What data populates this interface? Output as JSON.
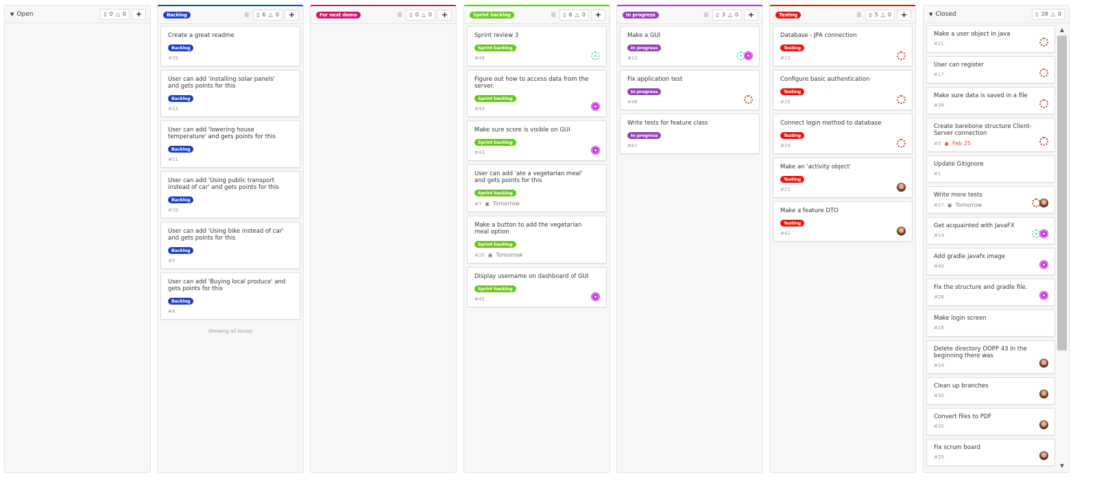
{
  "board": {
    "showing_all": "Showing all issues",
    "columns": [
      {
        "title": "Open",
        "type": "plain",
        "issues": "0",
        "weight": "0",
        "cards": []
      },
      {
        "title": "Backlog",
        "type": "label",
        "color": "#1b3fc9",
        "issues": "6",
        "weight": "0",
        "showing": true,
        "cards": [
          {
            "title": "Create a great readme",
            "label": "Backlog",
            "num": "#39",
            "avatars": []
          },
          {
            "title": "User can add 'installing solar panels' and gets points for this",
            "label": "Backlog",
            "num": "#12",
            "avatars": []
          },
          {
            "title": "User can add 'lowering house temperature' and gets points for this",
            "label": "Backlog",
            "num": "#11",
            "avatars": []
          },
          {
            "title": "User can add 'Using public transport instead of car' and gets points for this",
            "label": "Backlog",
            "num": "#10",
            "avatars": []
          },
          {
            "title": "User can add 'Using bike instead of car' and gets points for this",
            "label": "Backlog",
            "num": "#9",
            "avatars": []
          },
          {
            "title": "User can add 'Buying local produce' and gets points for this",
            "label": "Backlog",
            "num": "#8",
            "avatars": []
          }
        ]
      },
      {
        "title": "For next demo",
        "type": "label",
        "color": "#d3126d",
        "issues": "0",
        "weight": "0",
        "cards": []
      },
      {
        "title": "Sprint backlog",
        "type": "label",
        "color": "#69c51c",
        "issues": "6",
        "weight": "0",
        "cards": [
          {
            "title": "Sprint review 3",
            "label": "Sprint backlog",
            "num": "#48",
            "avatars": [
              "green"
            ]
          },
          {
            "title": "Figure out how to access data from the server.",
            "label": "Sprint backlog",
            "num": "#44",
            "avatars": [
              "purple"
            ]
          },
          {
            "title": "Make sure score is visible on GUI",
            "label": "Sprint backlog",
            "num": "#43",
            "avatars": [
              "purple"
            ]
          },
          {
            "title": "User can add 'ate a vegetarian meal' and gets points for this",
            "label": "Sprint backlog",
            "num": "#7",
            "due": "Tomorrow",
            "avatars": []
          },
          {
            "title": "Make a button to add the vegetarian meal option",
            "label": "Sprint backlog",
            "num": "#20",
            "due": "Tomorrow",
            "avatars": []
          },
          {
            "title": "Display username on dashboard of GUI",
            "label": "Sprint backlog",
            "num": "#45",
            "avatars": [
              "purple"
            ]
          }
        ]
      },
      {
        "title": "In progress",
        "type": "label",
        "color": "#9442b3",
        "issues": "3",
        "weight": "0",
        "cards": [
          {
            "title": "Make a GUI",
            "label": "In progress",
            "num": "#13",
            "avatars": [
              "green",
              "purple"
            ]
          },
          {
            "title": "Fix application test",
            "label": "In progress",
            "num": "#46",
            "avatars": [
              "ring"
            ]
          },
          {
            "title": "Write tests for feature class",
            "label": "In progress",
            "num": "#47",
            "avatars": []
          }
        ]
      },
      {
        "title": "Testing",
        "type": "label",
        "color": "#e8120f",
        "issues": "5",
        "weight": "0",
        "cards": [
          {
            "title": "Database - JPA connection",
            "label": "Testing",
            "num": "#23",
            "avatars": [
              "ring"
            ]
          },
          {
            "title": "Configure basic authentication",
            "label": "Testing",
            "num": "#26",
            "avatars": [
              "ring"
            ]
          },
          {
            "title": "Connect login method to database",
            "label": "Testing",
            "num": "#19",
            "avatars": [
              "ring"
            ]
          },
          {
            "title": "Make an 'activity object'",
            "label": "Testing",
            "num": "#22",
            "avatars": [
              "photo"
            ]
          },
          {
            "title": "Make a feature DTO",
            "label": "Testing",
            "num": "#42",
            "avatars": [
              "photo"
            ]
          }
        ]
      },
      {
        "title": "Closed",
        "type": "plain",
        "issues": "28",
        "weight": "0",
        "closed": true,
        "cards": [
          {
            "title": "Make a user object in java",
            "num": "#21",
            "avatars": [
              "ring"
            ]
          },
          {
            "title": "User can register",
            "num": "#17",
            "avatars": [
              "ring"
            ]
          },
          {
            "title": "Make sure data is saved in a file",
            "num": "#38",
            "avatars": [
              "ring"
            ]
          },
          {
            "title": "Create barebone structure Client-Server connection",
            "num": "#5",
            "due": "Feb 25",
            "overdue": true,
            "avatars": [
              "ring"
            ]
          },
          {
            "title": "Update Gitignore",
            "num": "#1",
            "avatars": []
          },
          {
            "title": "Write more tests",
            "num": "#37",
            "due": "Tomorrow",
            "avatars": [
              "ring",
              "photo"
            ]
          },
          {
            "title": "Get acquainted with JavaFX",
            "num": "#14",
            "avatars": [
              "green",
              "purple"
            ]
          },
          {
            "title": "Add gradle javafx image",
            "num": "#40",
            "avatars": [
              "purple"
            ]
          },
          {
            "title": "Fix the structure and gradle file.",
            "num": "#28",
            "avatars": [
              "purple"
            ]
          },
          {
            "title": "Make login screen",
            "num": "#18",
            "avatars": []
          },
          {
            "title": "Delete directory OOPP 43 In the beginning there was",
            "num": "#34",
            "avatars": [
              "photo"
            ]
          },
          {
            "title": "Clean up branches",
            "num": "#30",
            "avatars": [
              "photo"
            ]
          },
          {
            "title": "Convert files to PDF",
            "num": "#35",
            "avatars": [
              "photo"
            ]
          },
          {
            "title": "Fix scrum board",
            "num": "#29",
            "avatars": [
              "photo"
            ]
          }
        ]
      }
    ]
  }
}
